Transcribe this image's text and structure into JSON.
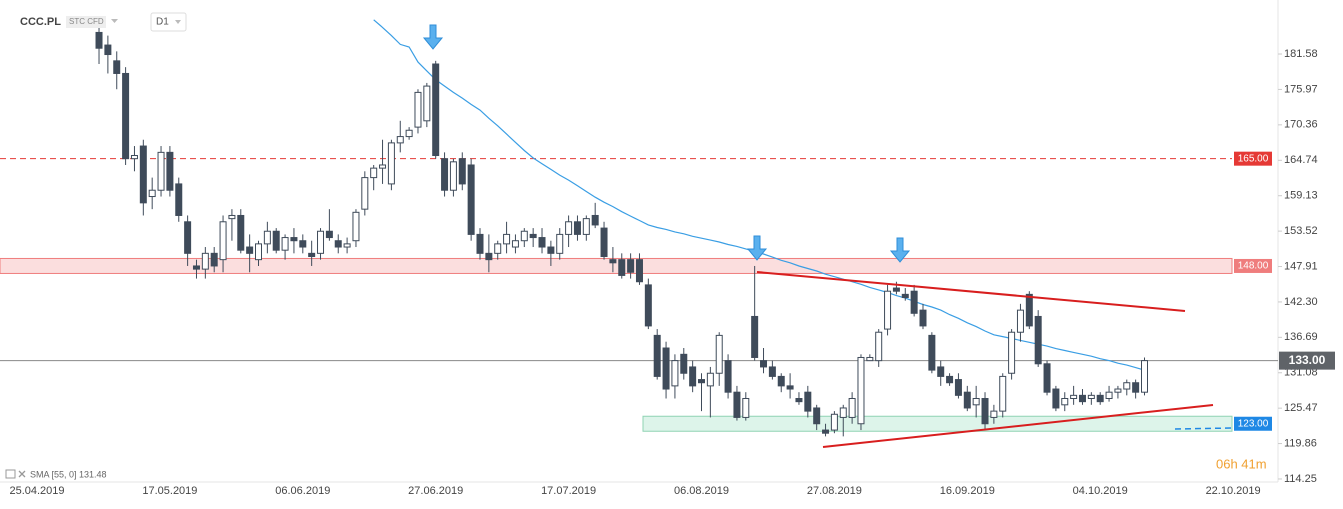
{
  "chart_data": {
    "type": "candlestick",
    "symbol": "CCC.PL",
    "instrument_type": "STC CFD",
    "timeframe": "D1",
    "timer": "06h 41m",
    "categories": [
      "25.04.2019",
      null,
      null,
      null,
      null,
      null,
      null,
      null,
      null,
      null,
      null,
      null,
      null,
      null,
      null,
      "17.05.2019",
      null,
      null,
      null,
      null,
      null,
      null,
      null,
      null,
      null,
      null,
      null,
      null,
      null,
      null,
      "06.06.2019",
      null,
      null,
      null,
      null,
      null,
      null,
      null,
      null,
      null,
      null,
      null,
      null,
      null,
      null,
      "27.06.2019",
      null,
      null,
      null,
      null,
      null,
      null,
      null,
      null,
      null,
      null,
      null,
      null,
      null,
      null,
      "17.07.2019",
      null,
      null,
      null,
      null,
      null,
      null,
      null,
      null,
      null,
      null,
      null,
      null,
      null,
      null,
      "06.08.2019",
      null,
      null,
      null,
      null,
      null,
      null,
      null,
      null,
      null,
      null,
      null,
      null,
      null,
      null,
      "27.08.2019",
      null,
      null,
      null,
      null,
      null,
      null,
      null,
      null,
      null,
      null,
      null,
      null,
      null,
      null,
      "16.09.2019",
      null,
      null,
      null,
      null,
      null,
      null,
      null,
      null,
      null,
      null,
      null,
      null,
      null,
      null,
      "04.10.2019",
      null,
      null,
      null,
      null,
      null,
      null,
      null,
      null,
      null,
      null,
      null,
      null,
      null,
      null,
      "22.10.2019"
    ],
    "candles": {
      "up_color": "#ffffff",
      "down_color": "#3f4b5a",
      "edge_color": "#3f4b5a",
      "open": [
        null,
        null,
        null,
        null,
        null,
        null,
        null,
        185,
        183,
        180.5,
        178.5,
        165,
        167,
        159,
        160,
        166,
        161,
        155,
        148,
        147.5,
        150,
        149,
        155.5,
        156,
        151,
        149,
        151.5,
        153.5,
        150.5,
        152.5,
        152,
        150,
        150,
        153.5,
        152,
        151,
        152,
        157,
        162,
        163.5,
        161,
        167.5,
        168.5,
        170,
        171,
        180,
        165,
        160,
        165,
        164,
        153,
        150,
        150,
        151.5,
        151,
        152,
        153,
        152.5,
        151,
        150,
        153,
        155,
        153,
        156,
        154,
        149,
        149,
        149,
        149,
        145,
        137,
        135,
        129,
        134,
        132,
        130,
        129,
        131,
        133,
        128,
        124,
        140,
        133,
        132,
        130.5,
        129,
        127,
        128,
        125.5,
        122,
        122,
        124,
        124,
        123,
        133,
        133,
        138,
        144.5,
        143.5,
        144,
        141,
        137,
        132,
        130.5,
        130,
        128,
        126,
        127,
        124,
        125,
        131,
        137.5,
        143.5,
        140,
        132.5,
        128.5,
        126,
        127,
        127.5,
        127,
        127.5,
        127,
        128,
        128.5,
        129.5,
        128,
        null,
        null,
        null,
        null,
        null,
        null,
        null,
        null,
        null,
        null
      ],
      "high": [
        null,
        null,
        null,
        null,
        null,
        null,
        null,
        187,
        184.5,
        182,
        179.5,
        167,
        168,
        162,
        167,
        167,
        162,
        156,
        149,
        151,
        151,
        156,
        157,
        157,
        153,
        152,
        155,
        154,
        153,
        154,
        153,
        152,
        154,
        157,
        153,
        152.5,
        157,
        163,
        164,
        168,
        168,
        171,
        170,
        176,
        177,
        180.5,
        166,
        165,
        166,
        165,
        154,
        153,
        152,
        155,
        153,
        154,
        154,
        154,
        152,
        154,
        156,
        156,
        156,
        158,
        155,
        151,
        150,
        150,
        150,
        146,
        138,
        136,
        134,
        135,
        133,
        131,
        132,
        137.5,
        134,
        129,
        128,
        148,
        135,
        133,
        131,
        131,
        128,
        129,
        126,
        123,
        125,
        126,
        128,
        134,
        134,
        138,
        145,
        145.5,
        144.5,
        145,
        142,
        137.5,
        133,
        131,
        131,
        129,
        129,
        128,
        126,
        131,
        138,
        142,
        144,
        141,
        133,
        129,
        128,
        129,
        128.5,
        128,
        128,
        129,
        129,
        130,
        130,
        133.5,
        null,
        null,
        null,
        null,
        null,
        null,
        null,
        null,
        null,
        null
      ],
      "low": [
        null,
        null,
        null,
        null,
        null,
        null,
        null,
        180,
        178.5,
        176,
        164,
        163,
        156,
        157,
        159,
        159,
        155,
        148,
        146,
        146,
        147,
        147,
        152,
        150,
        147,
        148,
        150,
        150,
        149,
        150,
        150,
        148,
        149,
        152,
        150,
        150,
        151,
        156,
        160,
        161,
        160,
        166,
        168,
        169,
        170,
        165,
        159,
        159,
        160,
        152,
        149,
        147,
        149,
        150,
        150,
        151,
        151,
        150,
        148,
        149,
        151,
        152,
        152,
        154,
        149,
        147,
        146,
        146,
        145,
        138,
        130,
        127,
        127,
        130,
        128,
        125,
        124,
        129,
        127,
        123.5,
        123.5,
        133,
        131,
        130,
        128,
        127,
        126,
        124,
        122,
        121,
        121.5,
        121,
        123,
        122,
        133,
        132,
        137,
        143.5,
        142.5,
        140,
        138,
        131,
        129,
        129,
        127,
        125,
        124,
        122,
        123,
        124,
        130,
        136,
        138,
        132,
        127.5,
        125,
        125,
        126,
        126,
        126,
        126,
        126.5,
        127,
        127.5,
        127,
        127.5,
        null,
        null,
        null,
        null,
        null,
        null,
        null,
        null,
        null,
        null
      ],
      "close": [
        null,
        null,
        null,
        null,
        null,
        null,
        null,
        182.5,
        181.5,
        178.5,
        165,
        165.5,
        158,
        160,
        166,
        160,
        156,
        150,
        147.5,
        150,
        148,
        155,
        156,
        150.5,
        150,
        151.5,
        153.5,
        150.5,
        152.5,
        152,
        151,
        149.5,
        153.5,
        152.5,
        151,
        151.5,
        156.5,
        162,
        163.5,
        164,
        167.5,
        168.5,
        169.5,
        175.5,
        176.5,
        165.5,
        160,
        164.5,
        161,
        153,
        150,
        149,
        151.5,
        153,
        152,
        153.5,
        152.5,
        151,
        150,
        153,
        155,
        153,
        155.5,
        154.5,
        149.5,
        148.5,
        146.5,
        147,
        145.5,
        138.5,
        130.5,
        128.5,
        133,
        131,
        129,
        129.5,
        131,
        137,
        128,
        124,
        127,
        133.5,
        132,
        130.5,
        129,
        128.5,
        126.5,
        125,
        123,
        121.5,
        124.5,
        125.5,
        127,
        133.5,
        133.5,
        137.5,
        144,
        144,
        143,
        140.5,
        138.5,
        131.5,
        130.5,
        129.5,
        127.5,
        125.5,
        127,
        123,
        125,
        130.5,
        137.5,
        141,
        138.5,
        132.5,
        128,
        125.5,
        127,
        127.5,
        126.5,
        127.5,
        126.5,
        128,
        128.5,
        129.5,
        128,
        133,
        null,
        null,
        null,
        null,
        null,
        null,
        null,
        null,
        null,
        null
      ]
    },
    "indicator": {
      "label": "SMA [55, 0] 131.48",
      "color": "#3a9ee4",
      "values": [
        null,
        null,
        null,
        null,
        null,
        null,
        null,
        null,
        null,
        null,
        null,
        null,
        null,
        null,
        null,
        null,
        null,
        null,
        null,
        null,
        null,
        null,
        null,
        null,
        null,
        null,
        null,
        null,
        null,
        null,
        null,
        null,
        null,
        null,
        null,
        null,
        null,
        null,
        187.0,
        185.8,
        184.5,
        183.1,
        182.7,
        180.3,
        178.9,
        177.5,
        176.5,
        175.5,
        174.6,
        173.6,
        172.7,
        171.4,
        170.2,
        168.9,
        167.6,
        166.3,
        165.1,
        164.2,
        163.3,
        162.4,
        161.6,
        160.7,
        159.8,
        158.9,
        158.1,
        157.4,
        156.6,
        155.9,
        155.2,
        154.5,
        154.1,
        153.8,
        153.4,
        153.1,
        152.7,
        152.4,
        152.1,
        151.8,
        151.4,
        151.1,
        150.7,
        150.3,
        149.9,
        149.4,
        148.9,
        148.5,
        148.0,
        147.6,
        147.2,
        146.7,
        146.3,
        145.9,
        145.5,
        145.1,
        144.6,
        144.2,
        143.8,
        143.3,
        142.9,
        142.4,
        141.9,
        141.5,
        141.0,
        140.3,
        139.7,
        139.0,
        138.4,
        137.7,
        137.1,
        136.8,
        136.5,
        136.2,
        135.9,
        135.6,
        135.3,
        134.9,
        134.6,
        134.3,
        134.0,
        133.7,
        133.3,
        133.0,
        132.6,
        132.3,
        131.9,
        131.5,
        null,
        null,
        null,
        null,
        null,
        null,
        null,
        null,
        null,
        null
      ]
    },
    "levels": [
      {
        "value": 165,
        "label": "165.00",
        "color": "#e53935",
        "style": "dashed"
      },
      {
        "value": 148,
        "label": "148.00",
        "color": "#ef7d7d",
        "style": "zone"
      },
      {
        "value": 123,
        "label": "123.00",
        "color": "#1e88e5",
        "style": "zone"
      }
    ],
    "current_price": {
      "value": 133,
      "label": "133.00",
      "color": "#5f6368"
    },
    "ylim": [
      113.77,
      190.14
    ],
    "yticks": [
      181.58,
      175.97,
      170.36,
      164.74,
      159.13,
      153.52,
      147.91,
      {
        "value": 142.3,
        "label": "142.30"
      },
      136.69,
      131.08,
      125.47,
      119.86,
      114.25
    ]
  }
}
